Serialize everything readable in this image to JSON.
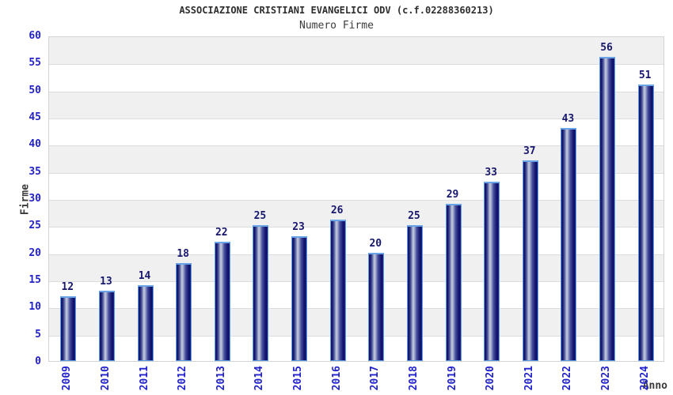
{
  "chart_data": {
    "type": "bar",
    "title": "ASSOCIAZIONE CRISTIANI EVANGELICI ODV (c.f.02288360213)",
    "subtitle": "Numero Firme",
    "xlabel": "Anno",
    "ylabel": "Firme",
    "categories": [
      "2009",
      "2010",
      "2011",
      "2012",
      "2013",
      "2014",
      "2015",
      "2016",
      "2017",
      "2018",
      "2019",
      "2020",
      "2021",
      "2022",
      "2023",
      "2024"
    ],
    "values": [
      12,
      13,
      14,
      18,
      22,
      25,
      23,
      26,
      20,
      25,
      29,
      33,
      37,
      43,
      56,
      51
    ],
    "ylim": [
      0,
      60
    ],
    "ytick_step": 5,
    "grid": "horizontal-bands-alternating",
    "legend": "none",
    "colors": {
      "axis_tick_label": "#2222cc",
      "value_label": "#17176e",
      "title": "#2e2e2e",
      "subtitle": "#3c3c3c",
      "axis_name_label": "#3a3a3a",
      "band_gray": "#f0f0f0",
      "band_white": "#ffffff",
      "plot_border": "#d4d4d4",
      "bar_dark": "#0e1060",
      "bar_mid": "#4a51a0",
      "bar_highlight": "#c9cde0",
      "bar_outline": "#5e9be2"
    }
  }
}
